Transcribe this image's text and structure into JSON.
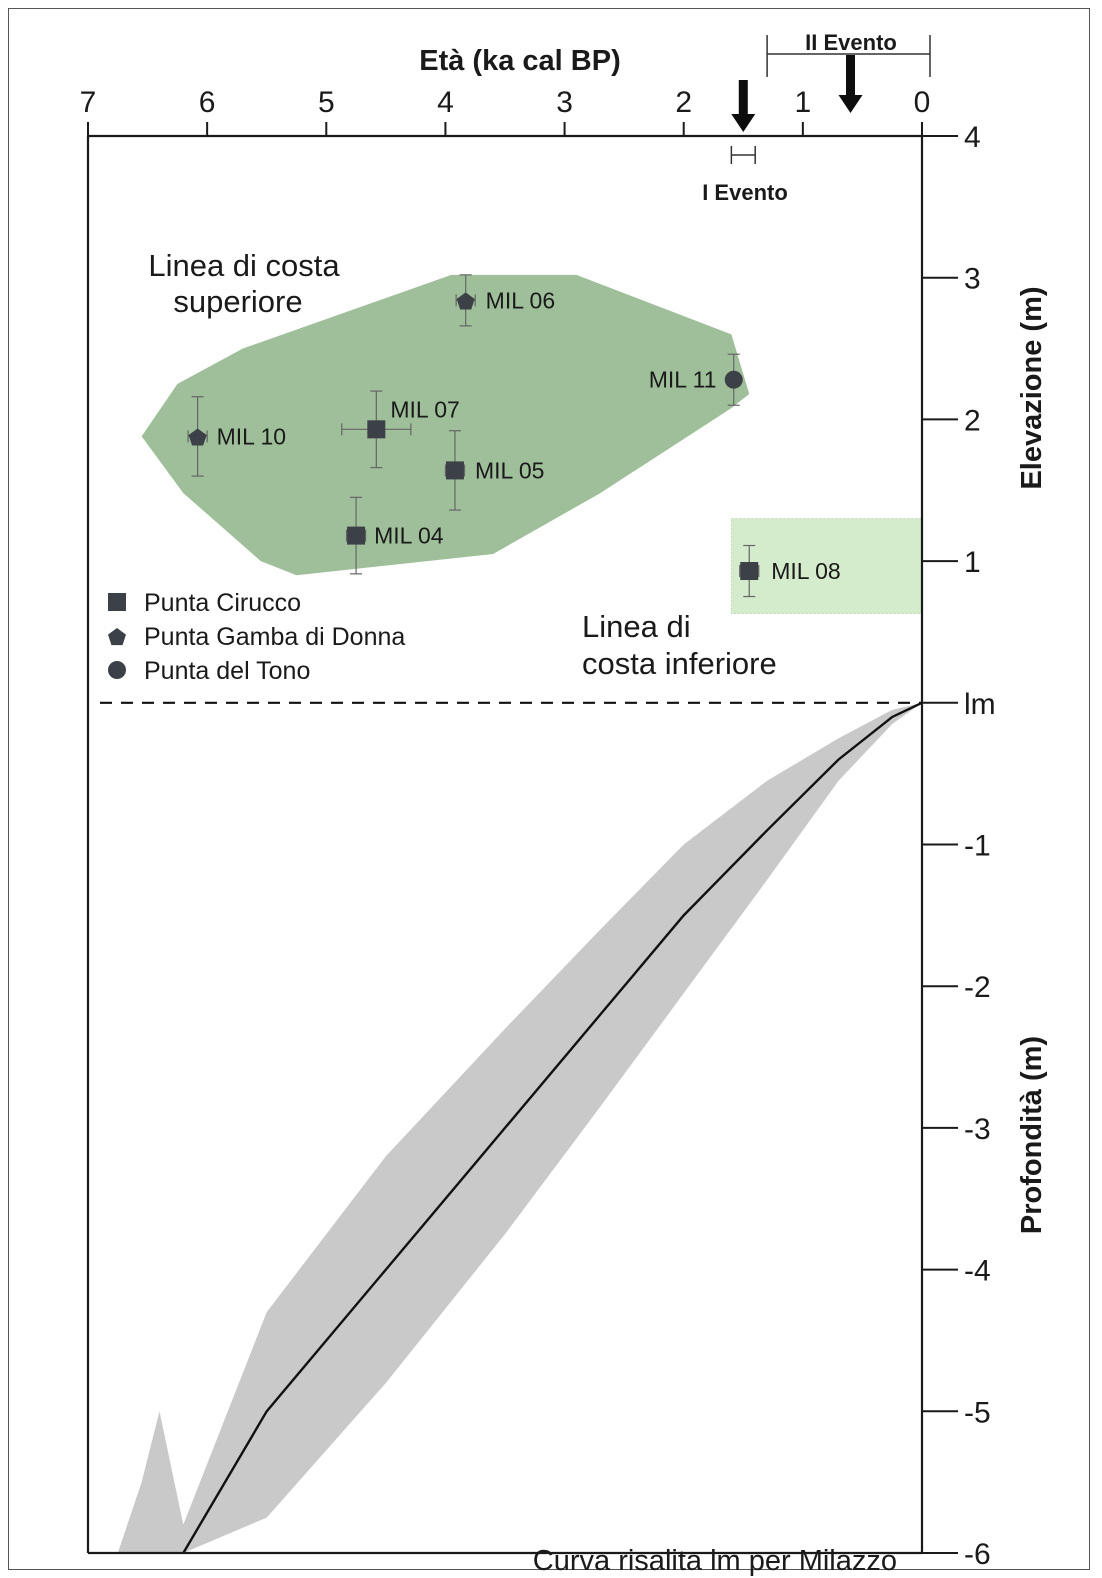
{
  "chart_data": {
    "type": "scatter",
    "title": "",
    "xlabel": "Età (ka cal BP)",
    "ylabel_top": "Elevazione (m)",
    "ylabel_bottom": "Profondità (m)",
    "xlim": [
      7,
      0
    ],
    "ylim": [
      -6,
      4
    ],
    "x_ticks": [
      "7",
      "6",
      "5",
      "4",
      "3",
      "2",
      "1",
      "0"
    ],
    "y_ticks": [
      {
        "value": 4,
        "label": "4"
      },
      {
        "value": 3,
        "label": "3"
      },
      {
        "value": 2,
        "label": "2"
      },
      {
        "value": 1,
        "label": "1"
      },
      {
        "value": 0,
        "label": "lm"
      },
      {
        "value": -1,
        "label": "-1"
      },
      {
        "value": -2,
        "label": "-2"
      },
      {
        "value": -3,
        "label": "-3"
      },
      {
        "value": -4,
        "label": "-4"
      },
      {
        "value": -5,
        "label": "-5"
      },
      {
        "value": -6,
        "label": "-6"
      }
    ],
    "points": [
      {
        "label": "MIL 06",
        "site": "Punta Gamba di Donna",
        "marker": "pentagon",
        "x": 3.83,
        "y": 2.84,
        "xerr": 0.08,
        "yerr": 0.18
      },
      {
        "label": "MIL 11",
        "site": "Punta del Tono",
        "marker": "circle",
        "x": 1.58,
        "y": 2.28,
        "xerr": 0.05,
        "yerr": 0.18
      },
      {
        "label": "MIL 07",
        "site": "Punta Cirucco",
        "marker": "square",
        "x": 4.58,
        "y": 1.93,
        "xerr": 0.29,
        "yerr": 0.27
      },
      {
        "label": "MIL 10",
        "site": "Punta Gamba di Donna",
        "marker": "pentagon",
        "x": 6.08,
        "y": 1.88,
        "xerr": 0.08,
        "yerr": 0.28
      },
      {
        "label": "MIL 05",
        "site": "Punta Cirucco",
        "marker": "square",
        "x": 3.92,
        "y": 1.64,
        "xerr": 0.08,
        "yerr": 0.28
      },
      {
        "label": "MIL 04",
        "site": "Punta Cirucco",
        "marker": "square",
        "x": 4.75,
        "y": 1.18,
        "xerr": 0.08,
        "yerr": 0.27
      },
      {
        "label": "MIL 08",
        "site": "Punta Cirucco",
        "marker": "square",
        "x": 1.45,
        "y": 0.93,
        "xerr": 0.08,
        "yerr": 0.18
      }
    ],
    "upper_shoreline_zone": {
      "label": "Linea di costa superiore",
      "polygon": [
        [
          6.55,
          1.88
        ],
        [
          6.25,
          2.25
        ],
        [
          5.7,
          2.5
        ],
        [
          3.95,
          3.02
        ],
        [
          2.9,
          3.02
        ],
        [
          1.6,
          2.6
        ],
        [
          1.45,
          2.18
        ],
        [
          1.6,
          2.08
        ],
        [
          2.7,
          1.48
        ],
        [
          3.6,
          1.05
        ],
        [
          5.25,
          0.9
        ],
        [
          5.55,
          1.0
        ],
        [
          6.2,
          1.48
        ]
      ]
    },
    "lower_shoreline_zone": {
      "label": "Linea di costa inferiore",
      "x_range": [
        1.6,
        0.0
      ],
      "y_range": [
        0.63,
        1.3
      ]
    },
    "sea_level_label": "lm",
    "curve": {
      "name": "Curva risalita lm per Milazzo",
      "x": [
        0.0,
        0.25,
        0.7,
        1.3,
        2.0,
        2.7,
        3.5,
        4.5,
        5.5,
        6.2
      ],
      "y": [
        0.0,
        -0.1,
        -0.4,
        -0.9,
        -1.5,
        -2.2,
        -3.0,
        -4.0,
        -5.0,
        -6.0
      ],
      "upper": [
        0.0,
        -0.05,
        -0.25,
        -0.55,
        -1.0,
        -1.6,
        -2.3,
        -3.2,
        -4.3,
        -5.8
      ],
      "lower": [
        0.0,
        -0.15,
        -0.55,
        -1.25,
        -2.05,
        -2.85,
        -3.75,
        -4.8,
        -5.75,
        -6.0
      ],
      "band_left_ext": [
        [
          6.4,
          -5.0
        ],
        [
          6.55,
          -5.5
        ],
        [
          6.75,
          -6.0
        ]
      ]
    },
    "events": [
      {
        "label": "I Evento",
        "arrow_x": 1.5,
        "range": [
          1.6,
          1.4
        ]
      },
      {
        "label": "II Evento",
        "arrow_x": 0.6,
        "range": [
          1.3,
          0.0
        ]
      }
    ],
    "legend": [
      {
        "marker": "square",
        "label": "Punta Cirucco"
      },
      {
        "marker": "pentagon",
        "label": "Punta Gamba di Donna"
      },
      {
        "marker": "circle",
        "label": "Punta del Tono"
      }
    ],
    "legend_position": "left-middle",
    "colors": {
      "upper_zone": "#9ebf99",
      "lower_zone": "#d4ebcc",
      "band": "#c9c9c9",
      "marker": "#3c4147",
      "axis": "#1a1a1a"
    }
  }
}
